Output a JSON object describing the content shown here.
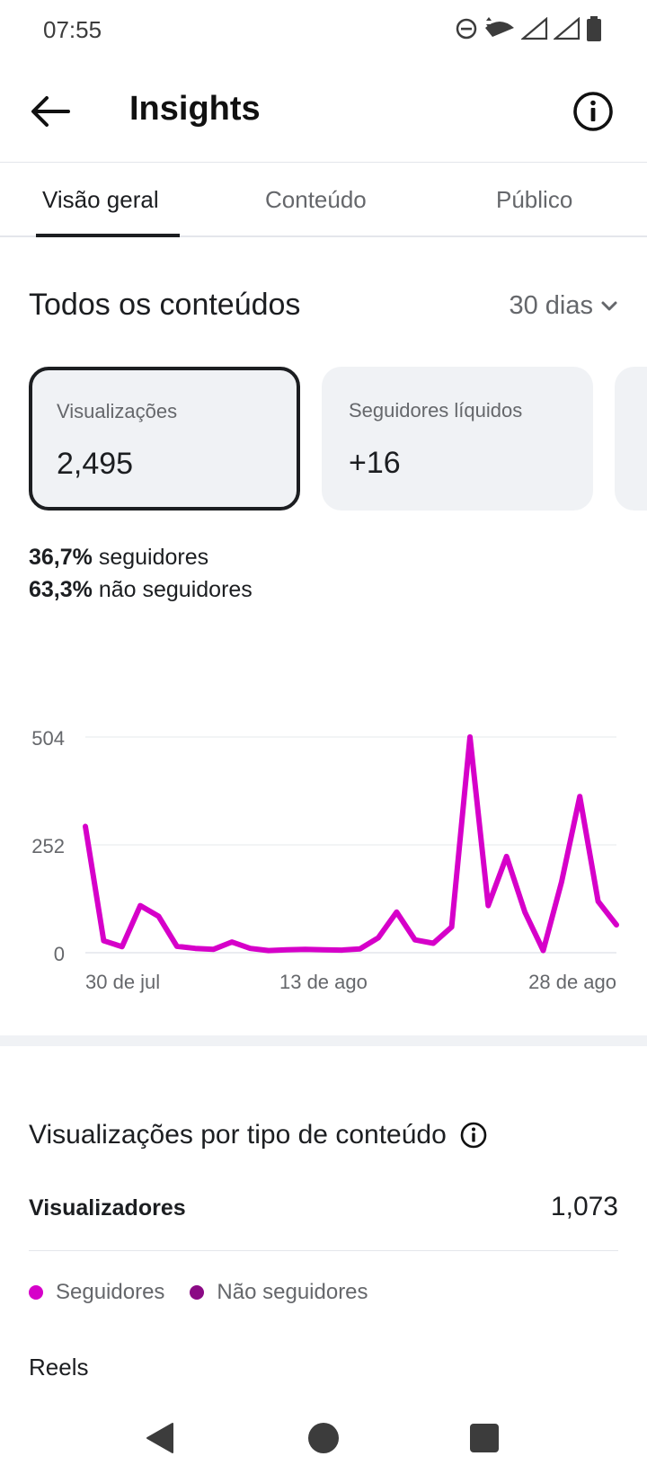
{
  "status_bar": {
    "time": "07:55",
    "icons": [
      "do-not-disturb-icon",
      "wifi-icon",
      "signal-icon",
      "signal-icon",
      "battery-icon"
    ]
  },
  "app_bar": {
    "title": "Insights",
    "back_icon": "arrow-left-icon",
    "info_icon": "info-icon"
  },
  "tabs": [
    {
      "label": "Visão geral",
      "active": true
    },
    {
      "label": "Conteúdo",
      "active": false
    },
    {
      "label": "Público",
      "active": false
    }
  ],
  "overview": {
    "title": "Todos os conteúdos",
    "range": "30 dias"
  },
  "cards": [
    {
      "label": "Visualizações",
      "value": "2,495",
      "selected": true
    },
    {
      "label": "Seguidores líquidos",
      "value": "+16",
      "selected": false
    }
  ],
  "breakdown": {
    "followers_pct": "36,7%",
    "followers_label": "seguidores",
    "non_followers_pct": "63,3%",
    "non_followers_label": "não seguidores"
  },
  "chart_data": {
    "type": "line",
    "x_tick_labels": [
      "30 de jul",
      "13 de ago",
      "28 de ago"
    ],
    "y_tick_labels": [
      "0",
      "252",
      "504"
    ],
    "ylim": [
      0,
      504
    ],
    "grid": true,
    "series": [
      {
        "color": "#d600c9",
        "values": [
          295,
          28,
          14,
          110,
          85,
          15,
          10,
          8,
          25,
          10,
          5,
          7,
          8,
          7,
          6,
          9,
          35,
          95,
          30,
          22,
          60,
          504,
          110,
          225,
          95,
          5,
          165,
          365,
          120,
          65
        ]
      }
    ],
    "x_tick_indices": [
      1,
      13,
      25
    ]
  },
  "content_type": {
    "title": "Visualizações por tipo de conteúdo",
    "viewers_label": "Visualizadores",
    "viewers_value": "1,073",
    "legend": [
      {
        "label": "Seguidores",
        "color": "#d600c9"
      },
      {
        "label": "Não seguidores",
        "color": "#8b0a85"
      }
    ],
    "first_row": "Reels"
  },
  "nav_bar": {
    "icons": [
      "back-triangle-icon",
      "home-circle-icon",
      "recents-square-icon"
    ]
  }
}
